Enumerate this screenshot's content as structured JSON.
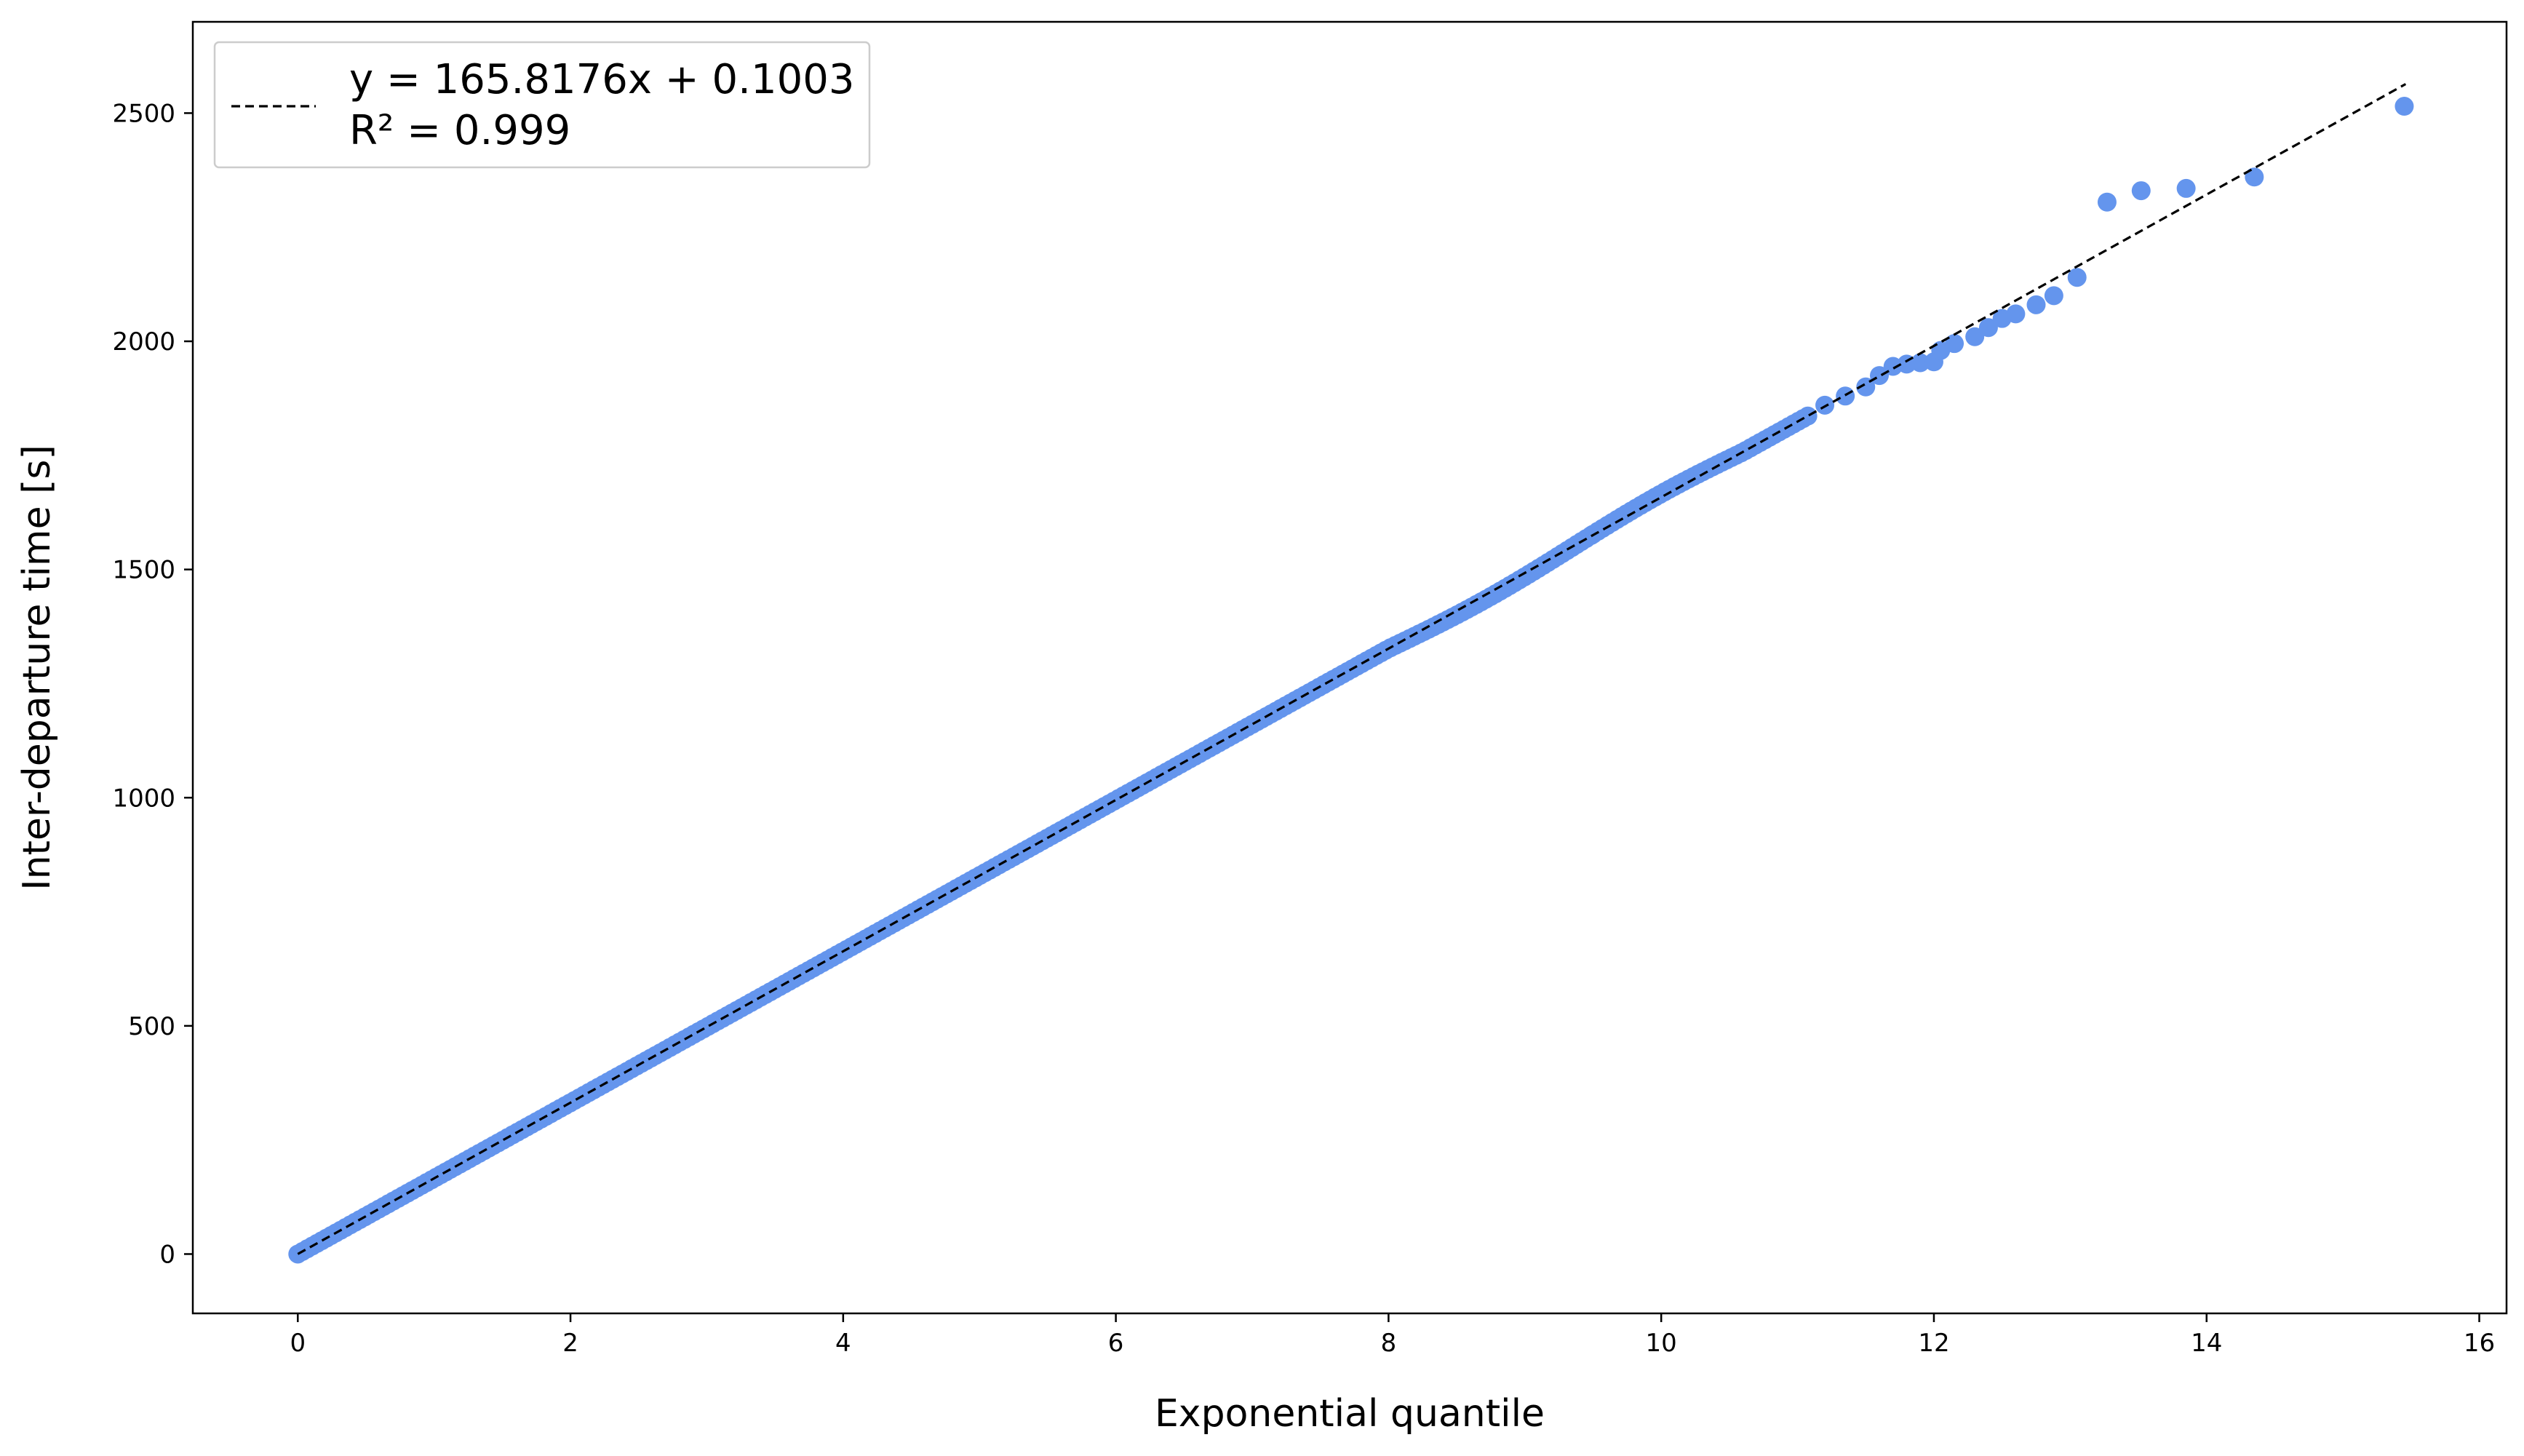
{
  "chart_data": {
    "type": "scatter",
    "title": "",
    "xlabel": "Exponential quantile",
    "ylabel": "Inter-departure time [s]",
    "xlim": [
      -0.77,
      16.2
    ],
    "ylim": [
      -130,
      2700
    ],
    "xticks": [
      0,
      2,
      4,
      6,
      8,
      10,
      12,
      14,
      16
    ],
    "yticks": [
      0,
      500,
      1000,
      1500,
      2000,
      2500
    ],
    "grid": false,
    "legend_position": "top-left",
    "point_color": "#6495ED",
    "fit": {
      "slope": 165.8176,
      "intercept": 0.1003,
      "x_range": [
        0,
        15.46
      ],
      "style": "dashed",
      "color": "#000000",
      "legend_eq": "y = 165.8176x + 0.1003",
      "legend_r2": "R² = 0.999"
    },
    "dense_ranges": [
      {
        "x0": 0.0,
        "x1": 9.5,
        "slope": 165.8
      },
      {
        "x0": 9.5,
        "x1": 11.1,
        "slope": 165.8
      }
    ],
    "points": [
      [
        11.2,
        1860
      ],
      [
        11.35,
        1880
      ],
      [
        11.5,
        1900
      ],
      [
        11.6,
        1925
      ],
      [
        11.7,
        1945
      ],
      [
        11.8,
        1950
      ],
      [
        11.9,
        1953
      ],
      [
        12.0,
        1955
      ],
      [
        12.05,
        1980
      ],
      [
        12.15,
        1995
      ],
      [
        12.3,
        2010
      ],
      [
        12.4,
        2030
      ],
      [
        12.5,
        2050
      ],
      [
        12.6,
        2060
      ],
      [
        12.75,
        2080
      ],
      [
        12.88,
        2100
      ],
      [
        13.05,
        2140
      ],
      [
        13.27,
        2305
      ],
      [
        13.52,
        2330
      ],
      [
        13.85,
        2335
      ],
      [
        14.35,
        2360
      ],
      [
        15.45,
        2515
      ]
    ]
  }
}
